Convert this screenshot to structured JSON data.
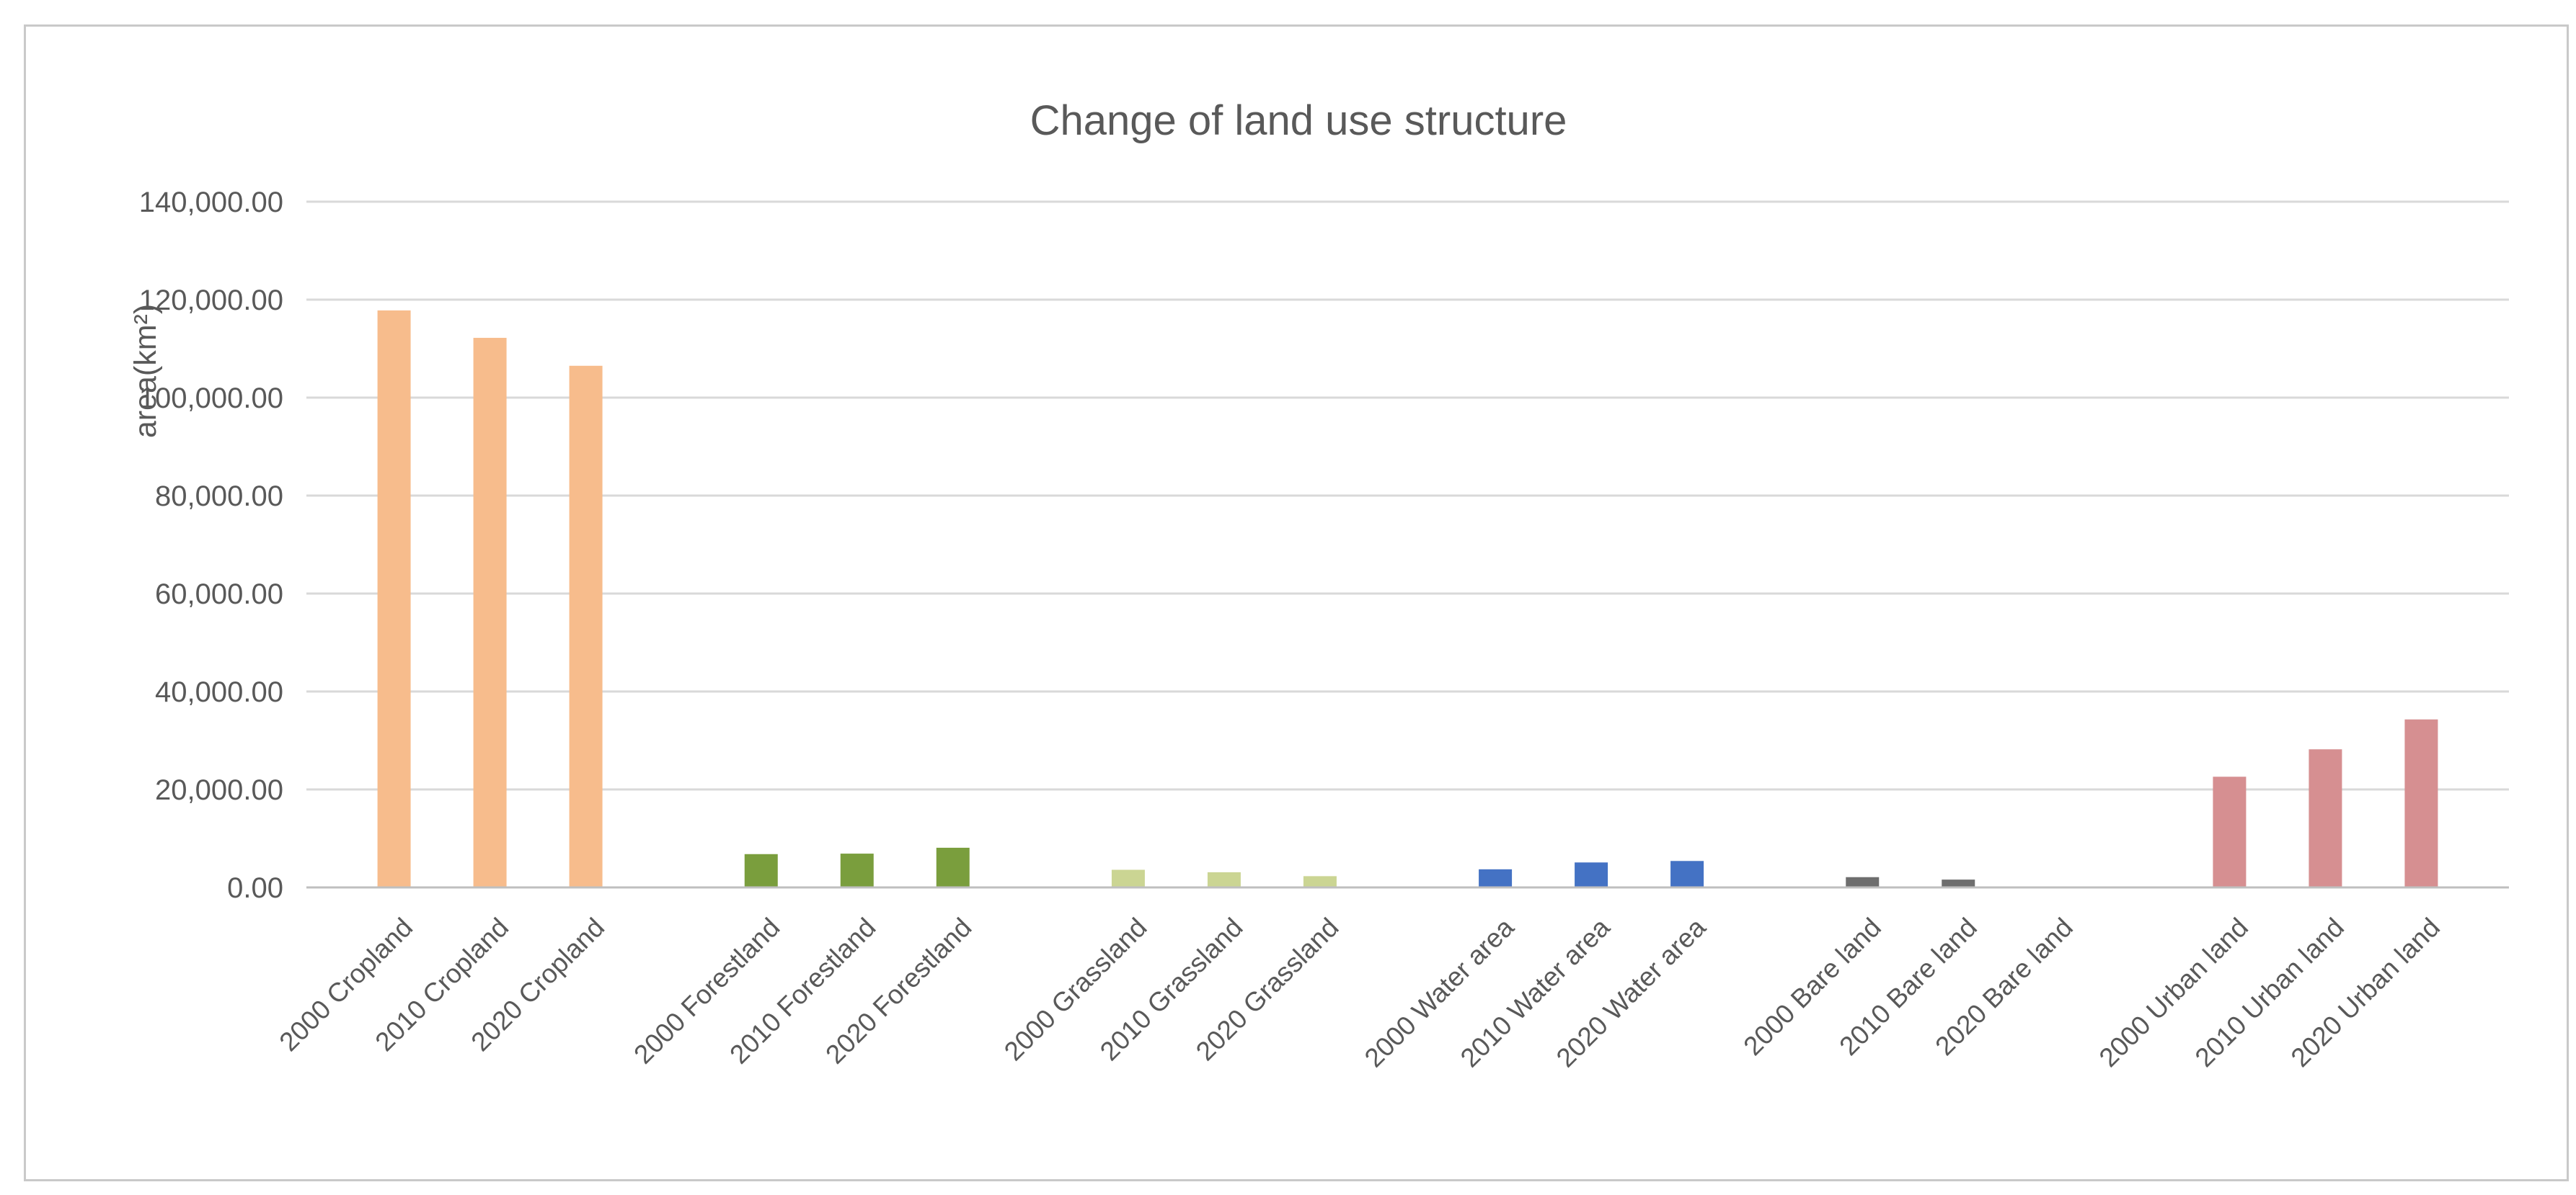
{
  "chart_data": {
    "type": "bar",
    "title": "Change of land use structure",
    "ylabel": "area(km²)",
    "xlabel": "",
    "ylim": [
      0,
      140000
    ],
    "ytick_interval": 20000,
    "ytick_labels": [
      "0.00",
      "20,000.00",
      "40,000.00",
      "60,000.00",
      "80,000.00",
      "100,000.00",
      "120,000.00",
      "140,000.00"
    ],
    "grid": true,
    "legend": false,
    "categories": [
      "2000 Cropland",
      "2010 Cropland",
      "2020 Cropland",
      "2000 Forestland",
      "2010 Forestland",
      "2020 Forestland",
      "2000 Grassland",
      "2010 Grassland",
      "2020 Grassland",
      "2000 Water area",
      "2010 Water area",
      "2020 Water area",
      "2000 Bare land",
      "2010 Bare land",
      "2020 Bare land",
      "2000 Urban land",
      "2010 Urban land",
      "2020 Urban land"
    ],
    "groups": [
      {
        "name": "Cropland",
        "color": "#f7bc8c",
        "bars": [
          {
            "label": "2000 Cropland",
            "value": 117800
          },
          {
            "label": "2010 Cropland",
            "value": 112200
          },
          {
            "label": "2020 Cropland",
            "value": 106500
          }
        ]
      },
      {
        "name": "Forestland",
        "color": "#7a9e3d",
        "bars": [
          {
            "label": "2000 Forestland",
            "value": 6800
          },
          {
            "label": "2010 Forestland",
            "value": 6900
          },
          {
            "label": "2020 Forestland",
            "value": 8100
          }
        ]
      },
      {
        "name": "Grassland",
        "color": "#cbd593",
        "bars": [
          {
            "label": "2000 Grassland",
            "value": 3600
          },
          {
            "label": "2010 Grassland",
            "value": 3100
          },
          {
            "label": "2020 Grassland",
            "value": 2300
          }
        ]
      },
      {
        "name": "Water area",
        "color": "#4472c4",
        "bars": [
          {
            "label": "2000 Water area",
            "value": 3700
          },
          {
            "label": "2010 Water area",
            "value": 5100
          },
          {
            "label": "2020 Water area",
            "value": 5400
          }
        ]
      },
      {
        "name": "Bare land",
        "color": "#6e6e6e",
        "bars": [
          {
            "label": "2000 Bare land",
            "value": 2100
          },
          {
            "label": "2010 Bare land",
            "value": 1600
          },
          {
            "label": "2020 Bare land",
            "value": 60
          }
        ]
      },
      {
        "name": "Urban land",
        "color": "#d68f91",
        "bars": [
          {
            "label": "2000 Urban land",
            "value": 22600
          },
          {
            "label": "2010 Urban land",
            "value": 28200
          },
          {
            "label": "2020 Urban land",
            "value": 34300
          }
        ]
      }
    ],
    "colors": {
      "title_text": "#595959",
      "axis_text": "#595959",
      "gridline": "#d9d9d9",
      "axis_line": "#bfbfbf",
      "frame_border": "#c9c9c9"
    }
  }
}
